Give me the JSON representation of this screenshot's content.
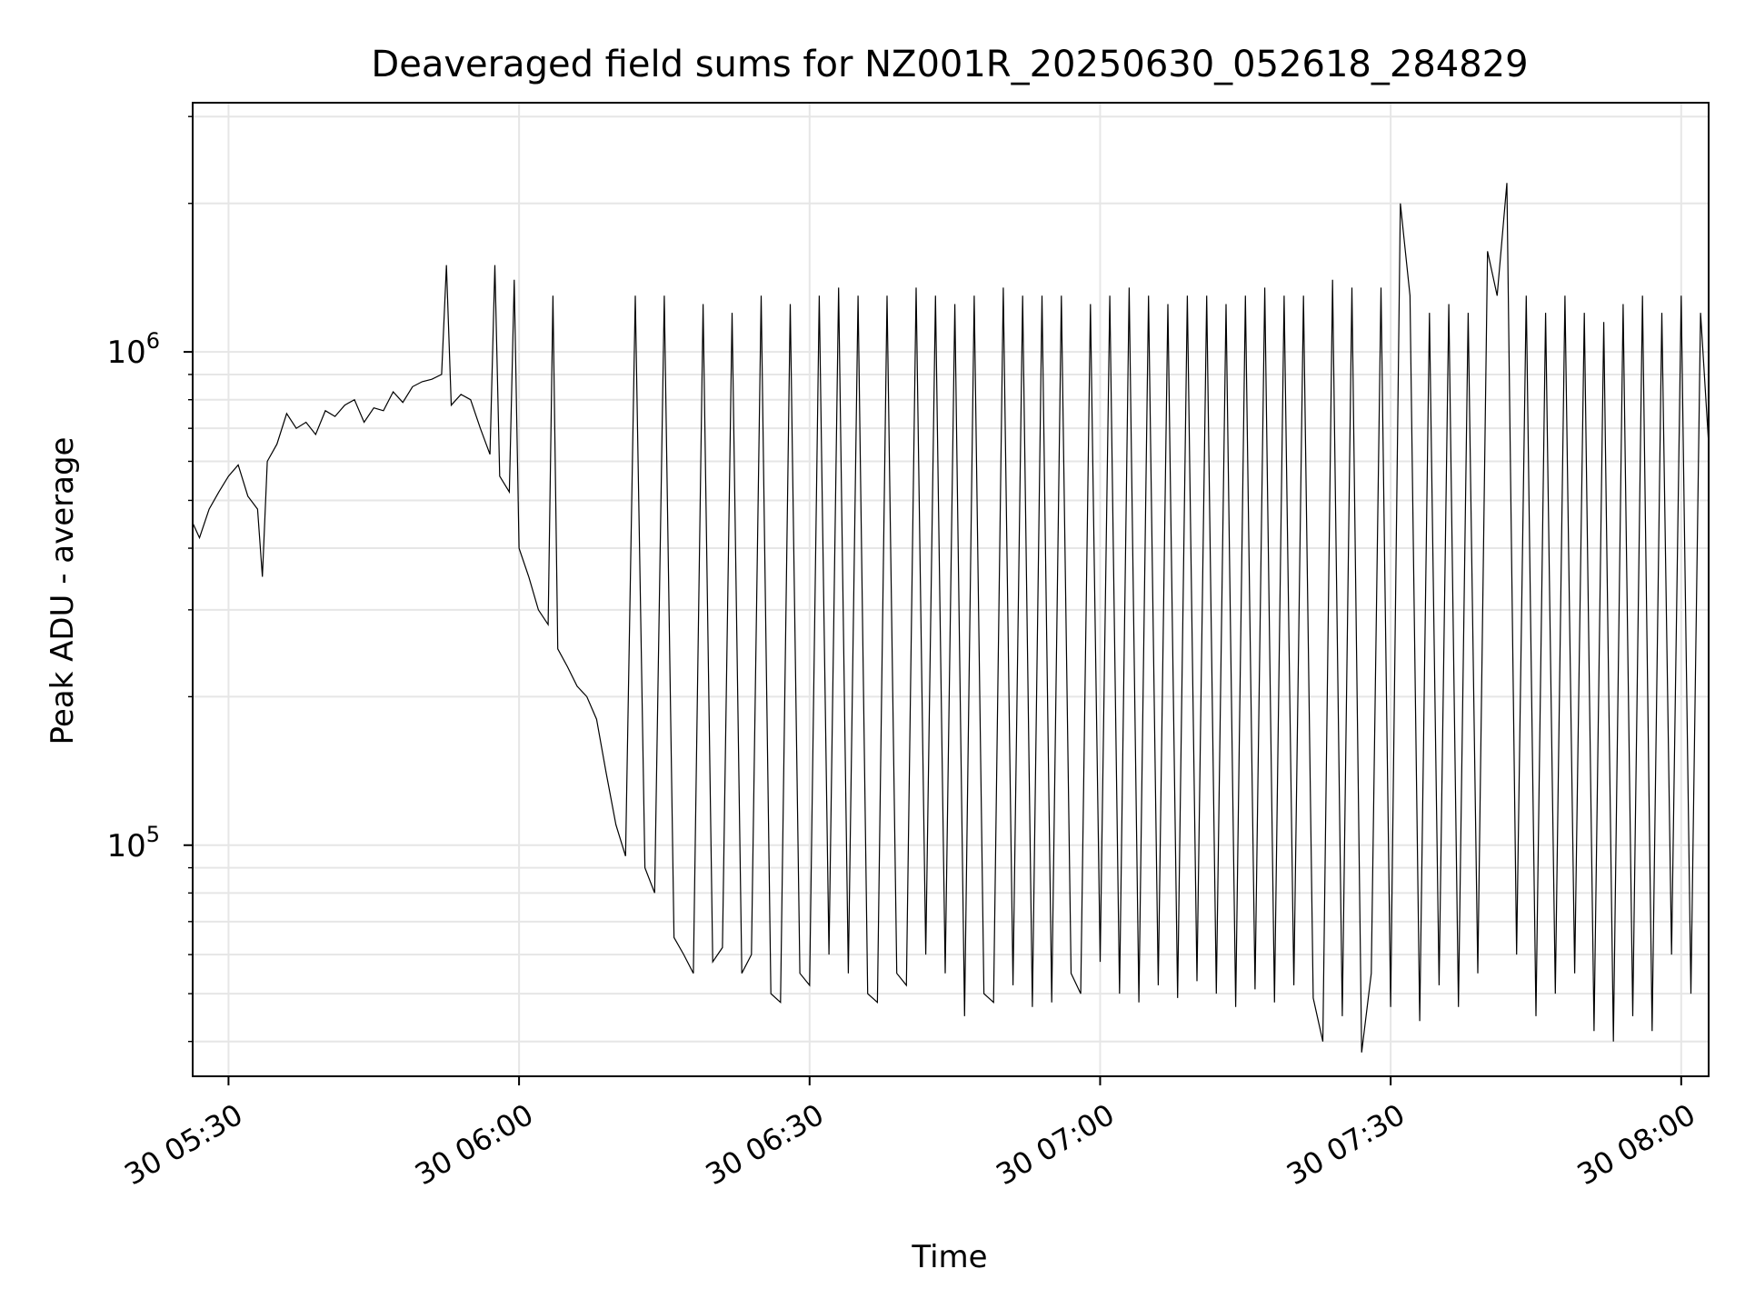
{
  "chart_data": {
    "type": "line",
    "title": "Deaveraged field sums for NZ001R_20250630_052618_284829",
    "xlabel": "Time",
    "ylabel": "Peak ADU - average",
    "yscale": "log",
    "grid": true,
    "legend": "none",
    "xlim": [
      "2025-06-30T05:26:18",
      "2025-06-30T08:02:50"
    ],
    "ylim": [
      34000,
      3200000
    ],
    "x_ticks": [
      "2025-06-30T05:30",
      "2025-06-30T06:00",
      "2025-06-30T06:30",
      "2025-06-30T07:00",
      "2025-06-30T07:30",
      "2025-06-30T08:00"
    ],
    "x_tick_labels": [
      "30 05:30",
      "30 06:00",
      "30 06:30",
      "30 07:00",
      "30 07:30",
      "30 08:00"
    ],
    "y_tick_labels": [
      {
        "base": "10",
        "exp": "5",
        "value": 100000
      },
      {
        "base": "10",
        "exp": "6",
        "value": 1000000
      }
    ],
    "colors": {
      "line": "#000000",
      "grid": "#e6e6e6",
      "axes": "#000000"
    },
    "series": [
      {
        "x": [
          "2025-06-30T05:26:18",
          "2025-06-30T05:27:00",
          "2025-06-30T05:28:00",
          "2025-06-30T05:29:00",
          "2025-06-30T05:30:00",
          "2025-06-30T05:31:00",
          "2025-06-30T05:32:00",
          "2025-06-30T05:33:00",
          "2025-06-30T05:33:30",
          "2025-06-30T05:34:00",
          "2025-06-30T05:35:00",
          "2025-06-30T05:36:00",
          "2025-06-30T05:37:00",
          "2025-06-30T05:38:00",
          "2025-06-30T05:39:00",
          "2025-06-30T05:40:00",
          "2025-06-30T05:41:00",
          "2025-06-30T05:42:00",
          "2025-06-30T05:43:00",
          "2025-06-30T05:44:00",
          "2025-06-30T05:45:00",
          "2025-06-30T05:46:00",
          "2025-06-30T05:47:00",
          "2025-06-30T05:48:00",
          "2025-06-30T05:49:00",
          "2025-06-30T05:50:00",
          "2025-06-30T05:51:00",
          "2025-06-30T05:52:00",
          "2025-06-30T05:52:30",
          "2025-06-30T05:53:00",
          "2025-06-30T05:54:00",
          "2025-06-30T05:55:00",
          "2025-06-30T05:56:00",
          "2025-06-30T05:57:00",
          "2025-06-30T05:57:30",
          "2025-06-30T05:58:00",
          "2025-06-30T05:59:00",
          "2025-06-30T05:59:30",
          "2025-06-30T06:00:00",
          "2025-06-30T06:01:00",
          "2025-06-30T06:02:00",
          "2025-06-30T06:03:00",
          "2025-06-30T06:03:30",
          "2025-06-30T06:04:00",
          "2025-06-30T06:05:00",
          "2025-06-30T06:06:00",
          "2025-06-30T06:07:00",
          "2025-06-30T06:08:00",
          "2025-06-30T06:09:00",
          "2025-06-30T06:10:00",
          "2025-06-30T06:11:00",
          "2025-06-30T06:12:00",
          "2025-06-30T06:13:00",
          "2025-06-30T06:14:00",
          "2025-06-30T06:15:00",
          "2025-06-30T06:16:00",
          "2025-06-30T06:17:00",
          "2025-06-30T06:18:00",
          "2025-06-30T06:19:00",
          "2025-06-30T06:20:00",
          "2025-06-30T06:21:00",
          "2025-06-30T06:22:00",
          "2025-06-30T06:23:00",
          "2025-06-30T06:24:00",
          "2025-06-30T06:25:00",
          "2025-06-30T06:26:00",
          "2025-06-30T06:27:00",
          "2025-06-30T06:28:00",
          "2025-06-30T06:29:00",
          "2025-06-30T06:30:00",
          "2025-06-30T06:31:00",
          "2025-06-30T06:32:00",
          "2025-06-30T06:33:00",
          "2025-06-30T06:34:00",
          "2025-06-30T06:35:00",
          "2025-06-30T06:36:00",
          "2025-06-30T06:37:00",
          "2025-06-30T06:38:00",
          "2025-06-30T06:39:00",
          "2025-06-30T06:40:00",
          "2025-06-30T06:41:00",
          "2025-06-30T06:42:00",
          "2025-06-30T06:43:00",
          "2025-06-30T06:44:00",
          "2025-06-30T06:45:00",
          "2025-06-30T06:46:00",
          "2025-06-30T06:47:00",
          "2025-06-30T06:48:00",
          "2025-06-30T06:49:00",
          "2025-06-30T06:50:00",
          "2025-06-30T06:51:00",
          "2025-06-30T06:52:00",
          "2025-06-30T06:53:00",
          "2025-06-30T06:54:00",
          "2025-06-30T06:55:00",
          "2025-06-30T06:56:00",
          "2025-06-30T06:57:00",
          "2025-06-30T06:58:00",
          "2025-06-30T06:59:00",
          "2025-06-30T07:00:00",
          "2025-06-30T07:01:00",
          "2025-06-30T07:02:00",
          "2025-06-30T07:03:00",
          "2025-06-30T07:04:00",
          "2025-06-30T07:05:00",
          "2025-06-30T07:06:00",
          "2025-06-30T07:07:00",
          "2025-06-30T07:08:00",
          "2025-06-30T07:09:00",
          "2025-06-30T07:10:00",
          "2025-06-30T07:11:00",
          "2025-06-30T07:12:00",
          "2025-06-30T07:13:00",
          "2025-06-30T07:14:00",
          "2025-06-30T07:15:00",
          "2025-06-30T07:16:00",
          "2025-06-30T07:17:00",
          "2025-06-30T07:18:00",
          "2025-06-30T07:19:00",
          "2025-06-30T07:20:00",
          "2025-06-30T07:21:00",
          "2025-06-30T07:22:00",
          "2025-06-30T07:23:00",
          "2025-06-30T07:24:00",
          "2025-06-30T07:25:00",
          "2025-06-30T07:26:00",
          "2025-06-30T07:27:00",
          "2025-06-30T07:28:00",
          "2025-06-30T07:29:00",
          "2025-06-30T07:30:00",
          "2025-06-30T07:31:00",
          "2025-06-30T07:32:00",
          "2025-06-30T07:33:00",
          "2025-06-30T07:34:00",
          "2025-06-30T07:35:00",
          "2025-06-30T07:36:00",
          "2025-06-30T07:37:00",
          "2025-06-30T07:38:00",
          "2025-06-30T07:39:00",
          "2025-06-30T07:40:00",
          "2025-06-30T07:41:00",
          "2025-06-30T07:42:00",
          "2025-06-30T07:43:00",
          "2025-06-30T07:44:00",
          "2025-06-30T07:45:00",
          "2025-06-30T07:46:00",
          "2025-06-30T07:47:00",
          "2025-06-30T07:48:00",
          "2025-06-30T07:49:00",
          "2025-06-30T07:50:00",
          "2025-06-30T07:51:00",
          "2025-06-30T07:52:00",
          "2025-06-30T07:53:00",
          "2025-06-30T07:54:00",
          "2025-06-30T07:55:00",
          "2025-06-30T07:56:00",
          "2025-06-30T07:57:00",
          "2025-06-30T07:58:00",
          "2025-06-30T07:59:00",
          "2025-06-30T08:00:00",
          "2025-06-30T08:01:00",
          "2025-06-30T08:02:00",
          "2025-06-30T08:02:50"
        ],
        "y": [
          450000,
          420000,
          480000,
          520000,
          560000,
          590000,
          510000,
          480000,
          350000,
          600000,
          650000,
          750000,
          700000,
          720000,
          680000,
          760000,
          740000,
          780000,
          800000,
          720000,
          770000,
          760000,
          830000,
          790000,
          850000,
          870000,
          880000,
          900000,
          1500000,
          780000,
          820000,
          800000,
          700000,
          620000,
          1500000,
          560000,
          520000,
          1400000,
          400000,
          350000,
          300000,
          280000,
          1300000,
          250000,
          230000,
          210000,
          200000,
          180000,
          140000,
          110000,
          95000,
          1300000,
          90000,
          80000,
          1300000,
          65000,
          60000,
          55000,
          1250000,
          58000,
          62000,
          1200000,
          55000,
          60000,
          1300000,
          50000,
          48000,
          1250000,
          55000,
          52000,
          1300000,
          60000,
          1350000,
          55000,
          1300000,
          50000,
          48000,
          1300000,
          55000,
          52000,
          1350000,
          60000,
          1300000,
          55000,
          1250000,
          45000,
          1300000,
          50000,
          48000,
          1350000,
          52000,
          1300000,
          47000,
          1300000,
          48000,
          1300000,
          55000,
          50000,
          1250000,
          58000,
          1300000,
          50000,
          1350000,
          48000,
          1300000,
          52000,
          1250000,
          49000,
          1300000,
          53000,
          1300000,
          50000,
          1250000,
          47000,
          1300000,
          51000,
          1350000,
          48000,
          1300000,
          52000,
          1300000,
          49000,
          40000,
          1400000,
          45000,
          1350000,
          38000,
          55000,
          1350000,
          47000,
          2000000,
          1300000,
          44000,
          1200000,
          52000,
          1250000,
          47000,
          1200000,
          55000,
          1600000,
          1300000,
          2200000,
          60000,
          1300000,
          45000,
          1200000,
          50000,
          1300000,
          55000,
          1200000,
          42000,
          1150000,
          40000,
          1250000,
          45000,
          1300000,
          42000,
          1200000,
          60000,
          1300000,
          50000,
          1200000,
          650000
        ]
      }
    ]
  }
}
